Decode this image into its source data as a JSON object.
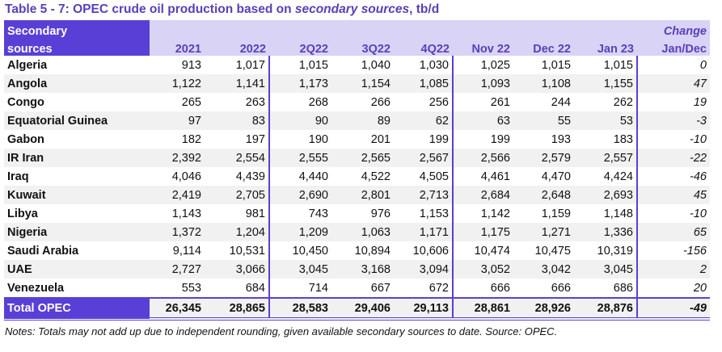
{
  "title": {
    "prefix": "Table 5 - 7: OPEC crude oil production based on ",
    "italic": "secondary sources",
    "suffix": ", tb/d"
  },
  "header": {
    "label_line1": "Secondary",
    "label_line2": "sources",
    "columns": [
      "2021",
      "2022",
      "2Q22",
      "3Q22",
      "4Q22",
      "Nov 22",
      "Dec 22",
      "Jan 23"
    ],
    "change_line1": "Change",
    "change_line2": "Jan/Dec"
  },
  "rows": [
    {
      "name": "Algeria",
      "values": [
        "913",
        "1,017",
        "1,015",
        "1,040",
        "1,030",
        "1,025",
        "1,015",
        "1,015"
      ],
      "change": "0"
    },
    {
      "name": "Angola",
      "values": [
        "1,122",
        "1,141",
        "1,173",
        "1,154",
        "1,085",
        "1,093",
        "1,108",
        "1,155"
      ],
      "change": "47"
    },
    {
      "name": "Congo",
      "values": [
        "265",
        "263",
        "268",
        "266",
        "256",
        "261",
        "244",
        "262"
      ],
      "change": "19"
    },
    {
      "name": "Equatorial Guinea",
      "values": [
        "97",
        "83",
        "90",
        "89",
        "62",
        "63",
        "55",
        "53"
      ],
      "change": "-3"
    },
    {
      "name": "Gabon",
      "values": [
        "182",
        "197",
        "190",
        "201",
        "199",
        "199",
        "193",
        "183"
      ],
      "change": "-10"
    },
    {
      "name": "IR Iran",
      "values": [
        "2,392",
        "2,554",
        "2,555",
        "2,565",
        "2,567",
        "2,566",
        "2,579",
        "2,557"
      ],
      "change": "-22"
    },
    {
      "name": "Iraq",
      "values": [
        "4,046",
        "4,439",
        "4,440",
        "4,522",
        "4,505",
        "4,461",
        "4,470",
        "4,424"
      ],
      "change": "-46"
    },
    {
      "name": "Kuwait",
      "values": [
        "2,419",
        "2,705",
        "2,690",
        "2,801",
        "2,713",
        "2,684",
        "2,648",
        "2,693"
      ],
      "change": "45"
    },
    {
      "name": "Libya",
      "values": [
        "1,143",
        "981",
        "743",
        "976",
        "1,153",
        "1,142",
        "1,159",
        "1,148"
      ],
      "change": "-10"
    },
    {
      "name": "Nigeria",
      "values": [
        "1,372",
        "1,204",
        "1,209",
        "1,063",
        "1,171",
        "1,175",
        "1,271",
        "1,336"
      ],
      "change": "65"
    },
    {
      "name": "Saudi Arabia",
      "values": [
        "9,114",
        "10,531",
        "10,450",
        "10,894",
        "10,606",
        "10,474",
        "10,475",
        "10,319"
      ],
      "change": "-156"
    },
    {
      "name": "UAE",
      "values": [
        "2,727",
        "3,066",
        "3,045",
        "3,168",
        "3,094",
        "3,052",
        "3,042",
        "3,045"
      ],
      "change": "2"
    },
    {
      "name": "Venezuela",
      "values": [
        "553",
        "684",
        "714",
        "667",
        "672",
        "666",
        "666",
        "686"
      ],
      "change": "20"
    }
  ],
  "total": {
    "name": "Total  OPEC",
    "values": [
      "26,345",
      "28,865",
      "28,583",
      "29,406",
      "29,113",
      "28,861",
      "28,926",
      "28,876"
    ],
    "change": "-49"
  },
  "notes": "Notes: Totals may not add up due to independent rounding, given available secondary sources to date. Source: OPEC."
}
